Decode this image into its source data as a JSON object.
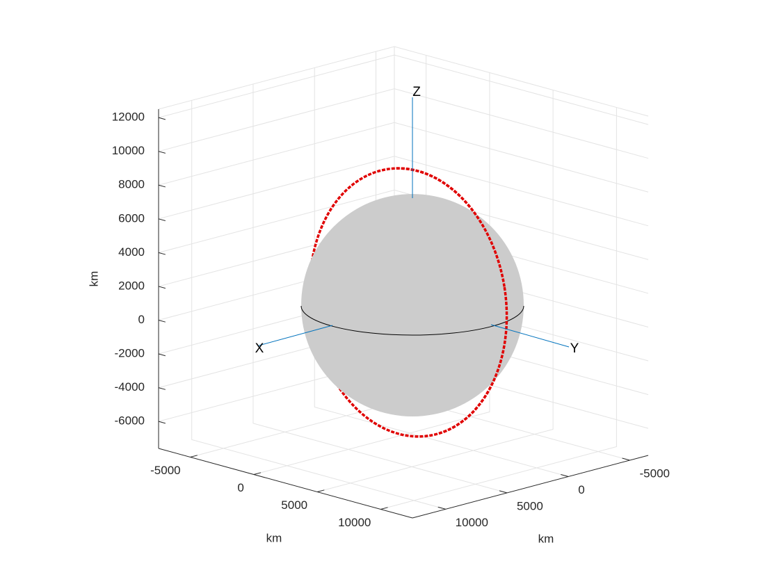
{
  "chart_data": {
    "type": "scatter3d",
    "xlabel": "km",
    "ylabel": "km",
    "zlabel": "km",
    "xlim": [
      -7500,
      12500
    ],
    "ylim": [
      -6500,
      12700
    ],
    "zlim": [
      -7600,
      12500
    ],
    "xticks": [
      -5000,
      0,
      5000,
      10000
    ],
    "yticks": [
      -5000,
      0,
      5000,
      10000
    ],
    "zticks": [
      -6000,
      -4000,
      -2000,
      0,
      2000,
      4000,
      6000,
      8000,
      10000,
      12000
    ],
    "axis_names": [
      "X",
      "Y",
      "Z"
    ],
    "grid": true
  }
}
